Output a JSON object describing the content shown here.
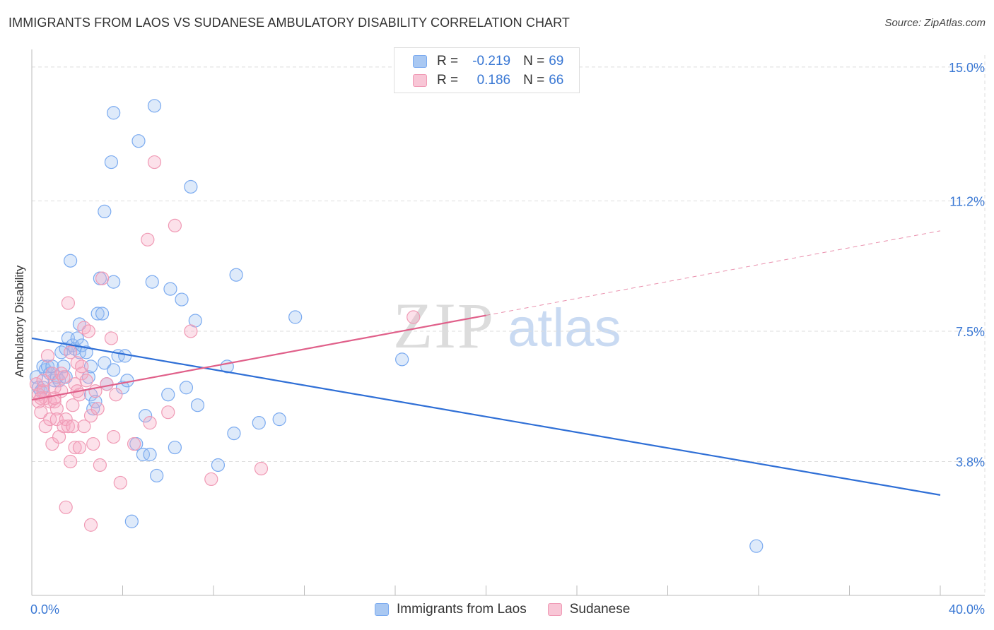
{
  "title": "IMMIGRANTS FROM LAOS VS SUDANESE AMBULATORY DISABILITY CORRELATION CHART",
  "source": "Source: ZipAtlas.com",
  "watermark": {
    "zip": "ZIP",
    "atlas": "atlas"
  },
  "legend": {
    "rows": [
      {
        "r_label": "R =",
        "r_value": "-0.219",
        "n_label": "N =",
        "n_value": "69"
      },
      {
        "r_label": "R =",
        "r_value": "0.186",
        "n_label": "N =",
        "n_value": "66"
      }
    ]
  },
  "chart_data": {
    "type": "scatter",
    "title": "IMMIGRANTS FROM LAOS VS SUDANESE AMBULATORY DISABILITY CORRELATION CHART",
    "xlabel": "",
    "ylabel": "Ambulatory Disability",
    "xlim": [
      0,
      40
    ],
    "ylim": [
      0,
      15.5
    ],
    "x_tick_labels": [
      "0.0%",
      "40.0%"
    ],
    "y_ticks": [
      3.8,
      7.5,
      11.2,
      15.0
    ],
    "y_tick_labels": [
      "3.8%",
      "7.5%",
      "11.2%",
      "15.0%"
    ],
    "grid": true,
    "series": [
      {
        "name": "Immigrants from Laos",
        "color": "#7aaaf0",
        "fill": "rgba(160,195,240,0.35)",
        "line_color": "#2f6fd6",
        "r": -0.219,
        "n": 69,
        "trend": {
          "x0": 0,
          "y0": 7.3,
          "x1": 40,
          "y1": 2.85,
          "solid_until": 40
        },
        "points": [
          [
            0.2,
            6.2
          ],
          [
            0.3,
            5.9
          ],
          [
            0.4,
            5.8
          ],
          [
            0.5,
            6.5
          ],
          [
            0.5,
            5.9
          ],
          [
            0.6,
            6.4
          ],
          [
            0.7,
            6.5
          ],
          [
            0.8,
            6.3
          ],
          [
            0.9,
            6.5
          ],
          [
            1.0,
            6.1
          ],
          [
            1.1,
            6.2
          ],
          [
            1.2,
            6.1
          ],
          [
            1.3,
            6.9
          ],
          [
            1.4,
            6.5
          ],
          [
            1.5,
            6.2
          ],
          [
            1.5,
            7.0
          ],
          [
            1.6,
            7.3
          ],
          [
            1.8,
            7.1
          ],
          [
            1.9,
            7.0
          ],
          [
            2.0,
            7.3
          ],
          [
            2.1,
            6.9
          ],
          [
            2.1,
            7.7
          ],
          [
            2.2,
            7.1
          ],
          [
            2.4,
            6.9
          ],
          [
            1.7,
            9.5
          ],
          [
            2.5,
            6.2
          ],
          [
            2.6,
            6.5
          ],
          [
            2.6,
            5.7
          ],
          [
            2.7,
            5.3
          ],
          [
            2.8,
            5.5
          ],
          [
            2.9,
            8.0
          ],
          [
            3.0,
            9.0
          ],
          [
            3.1,
            8.0
          ],
          [
            3.2,
            10.9
          ],
          [
            3.2,
            6.6
          ],
          [
            3.3,
            6.0
          ],
          [
            3.5,
            12.3
          ],
          [
            3.6,
            8.9
          ],
          [
            3.6,
            13.7
          ],
          [
            3.6,
            6.4
          ],
          [
            3.8,
            6.8
          ],
          [
            4.0,
            5.9
          ],
          [
            4.1,
            6.8
          ],
          [
            4.2,
            6.1
          ],
          [
            4.4,
            2.1
          ],
          [
            4.6,
            4.3
          ],
          [
            4.7,
            12.9
          ],
          [
            4.9,
            4.0
          ],
          [
            5.0,
            5.1
          ],
          [
            5.2,
            4.0
          ],
          [
            5.3,
            8.9
          ],
          [
            5.4,
            13.9
          ],
          [
            5.5,
            3.4
          ],
          [
            6.0,
            5.7
          ],
          [
            6.1,
            8.7
          ],
          [
            6.3,
            4.2
          ],
          [
            6.6,
            8.4
          ],
          [
            6.8,
            5.9
          ],
          [
            7.0,
            11.6
          ],
          [
            7.2,
            7.8
          ],
          [
            7.3,
            5.4
          ],
          [
            8.2,
            3.7
          ],
          [
            8.6,
            6.5
          ],
          [
            8.9,
            4.6
          ],
          [
            9.0,
            9.1
          ],
          [
            10.0,
            4.9
          ],
          [
            10.9,
            5.0
          ],
          [
            11.6,
            7.9
          ],
          [
            16.3,
            6.7
          ],
          [
            31.9,
            1.4
          ]
        ]
      },
      {
        "name": "Sudanese",
        "color": "#f09ab5",
        "fill": "rgba(245,170,195,0.35)",
        "line_color": "#e0608a",
        "r": 0.186,
        "n": 66,
        "trend": {
          "x0": 0,
          "y0": 5.55,
          "x1": 40,
          "y1": 10.35,
          "solid_until": 20
        },
        "points": [
          [
            0.2,
            6.0
          ],
          [
            0.3,
            5.7
          ],
          [
            0.3,
            5.5
          ],
          [
            0.4,
            5.2
          ],
          [
            0.5,
            5.8
          ],
          [
            0.5,
            6.1
          ],
          [
            0.6,
            4.8
          ],
          [
            0.6,
            5.6
          ],
          [
            0.7,
            6.8
          ],
          [
            0.8,
            5.5
          ],
          [
            0.8,
            5.0
          ],
          [
            0.9,
            4.3
          ],
          [
            0.9,
            6.3
          ],
          [
            1.0,
            5.5
          ],
          [
            1.0,
            5.9
          ],
          [
            1.1,
            5.3
          ],
          [
            1.1,
            5.0
          ],
          [
            1.2,
            4.5
          ],
          [
            1.3,
            6.3
          ],
          [
            1.3,
            5.8
          ],
          [
            1.4,
            6.2
          ],
          [
            1.4,
            4.8
          ],
          [
            1.5,
            5.0
          ],
          [
            1.5,
            2.5
          ],
          [
            1.6,
            8.3
          ],
          [
            1.6,
            4.8
          ],
          [
            1.7,
            6.9
          ],
          [
            1.7,
            3.8
          ],
          [
            1.8,
            4.8
          ],
          [
            1.8,
            5.4
          ],
          [
            1.9,
            4.2
          ],
          [
            1.9,
            6.0
          ],
          [
            2.0,
            6.6
          ],
          [
            2.1,
            5.7
          ],
          [
            2.1,
            4.2
          ],
          [
            2.2,
            6.3
          ],
          [
            2.2,
            6.5
          ],
          [
            2.3,
            7.6
          ],
          [
            2.3,
            4.8
          ],
          [
            2.4,
            6.1
          ],
          [
            2.5,
            7.5
          ],
          [
            2.6,
            5.1
          ],
          [
            2.6,
            2.0
          ],
          [
            2.7,
            4.3
          ],
          [
            2.8,
            5.8
          ],
          [
            2.9,
            5.3
          ],
          [
            3.0,
            3.7
          ],
          [
            3.1,
            9.0
          ],
          [
            3.3,
            6.0
          ],
          [
            3.5,
            7.3
          ],
          [
            3.6,
            4.5
          ],
          [
            3.7,
            5.7
          ],
          [
            3.9,
            3.2
          ],
          [
            4.5,
            4.3
          ],
          [
            5.1,
            10.1
          ],
          [
            5.2,
            4.9
          ],
          [
            5.4,
            12.3
          ],
          [
            6.0,
            5.2
          ],
          [
            6.3,
            10.5
          ],
          [
            7.0,
            7.5
          ],
          [
            7.9,
            3.3
          ],
          [
            10.1,
            3.6
          ],
          [
            16.8,
            7.9
          ],
          [
            0.4,
            5.6
          ],
          [
            1.0,
            5.6
          ],
          [
            2.0,
            5.8
          ]
        ]
      }
    ]
  }
}
